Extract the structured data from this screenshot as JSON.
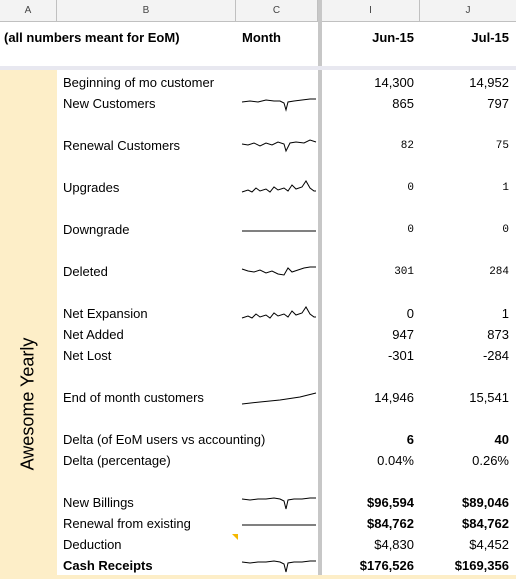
{
  "columns": [
    "A",
    "B",
    "C",
    "I",
    "J"
  ],
  "header": {
    "b": "(all numbers meant for EoM)",
    "c": "Month",
    "i": "Jun-15",
    "j": "Jul-15"
  },
  "section_label": "Awesome Yearly",
  "rows": [
    {
      "label": "Beginning of mo customer",
      "jun": "14,300",
      "jul": "14,952"
    },
    {
      "label": "New Customers",
      "jun": "865",
      "jul": "797"
    },
    {
      "label": "Renewal Customers",
      "jun": "82",
      "jul": "75"
    },
    {
      "label": "Upgrades",
      "jun": "0",
      "jul": "1"
    },
    {
      "label": "Downgrade",
      "jun": "0",
      "jul": "0"
    },
    {
      "label": "Deleted",
      "jun": "301",
      "jul": "284"
    },
    {
      "label": "Net Expansion",
      "jun": "0",
      "jul": "1"
    },
    {
      "label": "Net Added",
      "jun": "947",
      "jul": "873"
    },
    {
      "label": "Net Lost",
      "jun": "-301",
      "jul": "-284"
    },
    {
      "label": "End of month customers",
      "jun": "14,946",
      "jul": "15,541"
    },
    {
      "label": "Delta (of EoM users vs accounting)",
      "jun": "6",
      "jul": "40"
    },
    {
      "label": "Delta (percentage)",
      "jun": "0.04%",
      "jul": "0.26%"
    },
    {
      "label": "New Billings",
      "jun": "$96,594",
      "jul": "$89,046"
    },
    {
      "label": "Renewal from existing",
      "jun": "$84,762",
      "jul": "$84,762"
    },
    {
      "label": "Deduction",
      "jun": "$4,830",
      "jul": "$4,452"
    },
    {
      "label": "Cash Receipts",
      "jun": "$176,526",
      "jul": "$169,356"
    }
  ],
  "colors": {
    "section_fill": "#fdeec8",
    "note_marker": "#f5b800"
  },
  "sparkline_icons": [
    "sparkline-new-customers",
    "sparkline-renewal",
    "sparkline-upgrades",
    "sparkline-downgrade",
    "sparkline-deleted",
    "sparkline-net-expansion",
    "sparkline-eom",
    "sparkline-new-billings",
    "sparkline-renewal-existing",
    "sparkline-cash-receipts"
  ]
}
